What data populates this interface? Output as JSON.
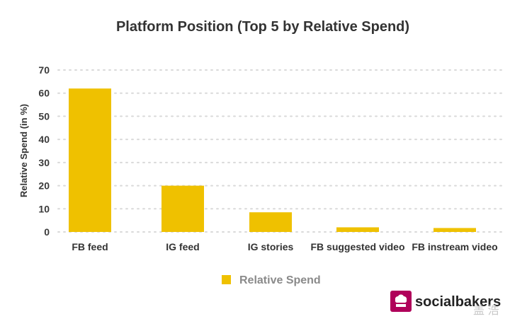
{
  "chart_data": {
    "type": "bar",
    "title": "Platform Position (Top 5 by Relative Spend)",
    "xlabel": "",
    "ylabel": "Relative Spend (in %)",
    "ylim": [
      0,
      70
    ],
    "yticks": [
      "0",
      "10",
      "20",
      "30",
      "40",
      "50",
      "60",
      "70"
    ],
    "categories": [
      "FB feed",
      "IG feed",
      "IG stories",
      "FB suggested video",
      "FB instream video"
    ],
    "series": [
      {
        "name": "Relative Spend",
        "values": [
          62,
          20,
          8.5,
          2,
          1.7
        ]
      }
    ],
    "grid": true,
    "legend": "bottom-center"
  },
  "colors": {
    "bar": "#efc100",
    "grid": "#d9d9d9",
    "logo": "#b0005a"
  },
  "branding": {
    "logo_text": "socialbakers",
    "watermark": "盖 浩"
  }
}
